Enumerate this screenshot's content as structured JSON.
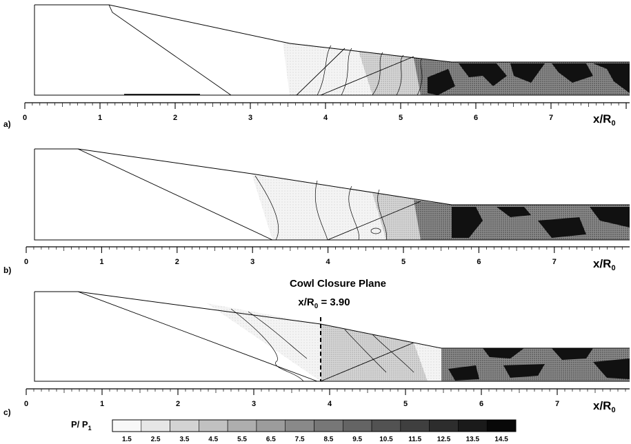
{
  "axis": {
    "title_main": "x/R",
    "title_sub": "0",
    "ticks": [
      "0",
      "1",
      "2",
      "3",
      "4",
      "5",
      "6",
      "7"
    ]
  },
  "panels": [
    {
      "label": "a)"
    },
    {
      "label": "b)"
    },
    {
      "label": "c)"
    }
  ],
  "annotation": {
    "line1": "Cowl Closure Plane",
    "line2_main": "x/R",
    "line2_sub": "0",
    "line2_value": " = 3.90",
    "x_position": 3.9
  },
  "colorbar": {
    "title_main": "P/ P",
    "title_sub": "1",
    "labels": [
      "1.5",
      "2.5",
      "3.5",
      "4.5",
      "5.5",
      "6.5",
      "7.5",
      "8.5",
      "9.5",
      "10.5",
      "11.5",
      "12.5",
      "13.5",
      "14.5"
    ]
  }
}
